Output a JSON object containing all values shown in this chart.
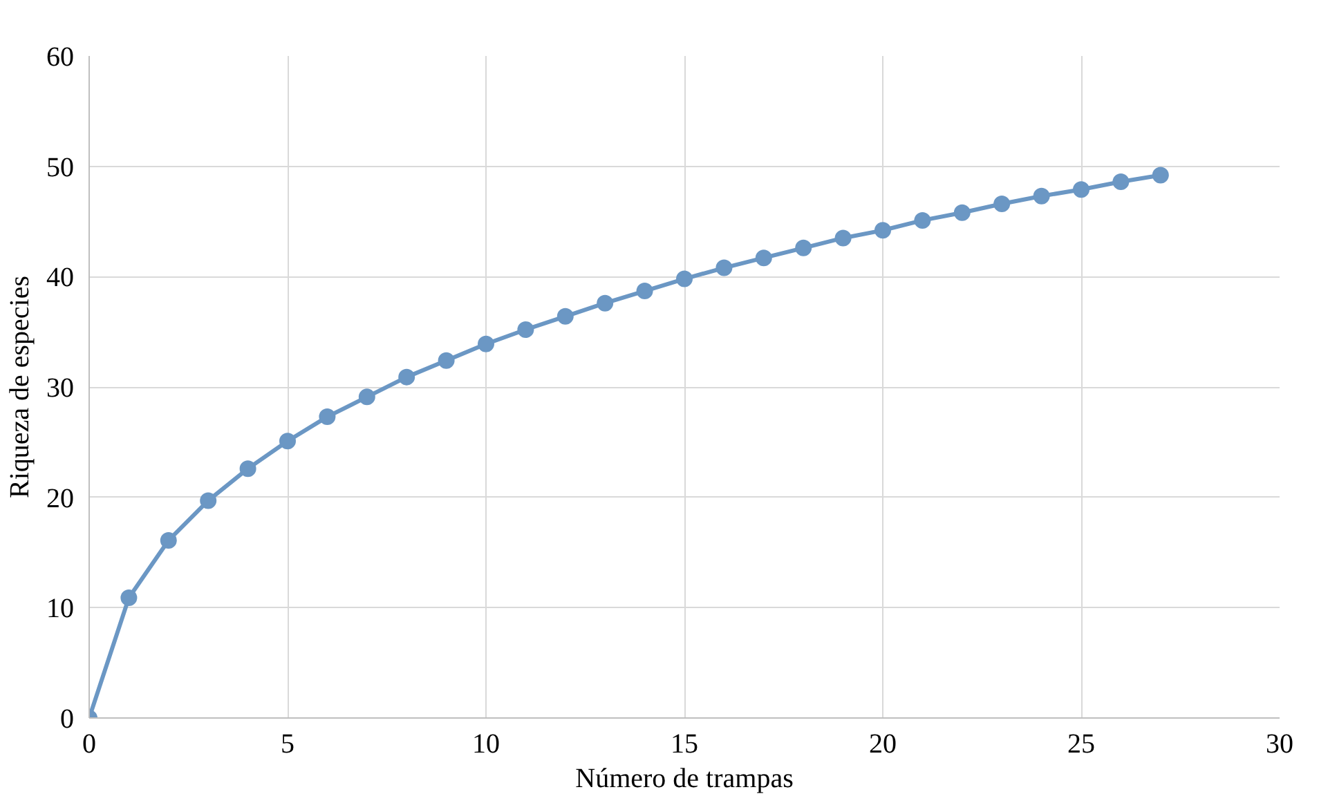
{
  "chart_data": {
    "type": "line",
    "xlabel": "Número de trampas",
    "ylabel": "Riqueza de especies",
    "x": [
      0,
      1,
      2,
      3,
      4,
      5,
      6,
      7,
      8,
      9,
      10,
      11,
      12,
      13,
      14,
      15,
      16,
      17,
      18,
      19,
      20,
      21,
      22,
      23,
      24,
      25,
      26,
      27
    ],
    "series": [
      {
        "color": "#6b97c4",
        "values": [
          0,
          10.9,
          16.1,
          19.7,
          22.6,
          25.1,
          27.3,
          29.1,
          30.9,
          32.4,
          33.9,
          35.2,
          36.4,
          37.6,
          38.7,
          39.8,
          40.8,
          41.7,
          42.6,
          43.5,
          44.2,
          45.1,
          45.8,
          46.6,
          47.3,
          47.9,
          48.6,
          49.2
        ]
      }
    ],
    "xlim": [
      0,
      30
    ],
    "xticks": [
      0,
      5,
      10,
      15,
      20,
      25,
      30
    ],
    "ylim": [
      0,
      60
    ],
    "yticks": [
      0,
      10,
      20,
      30,
      40,
      50,
      60
    ],
    "grid": true,
    "marker": "circle",
    "line_style": "solid"
  }
}
